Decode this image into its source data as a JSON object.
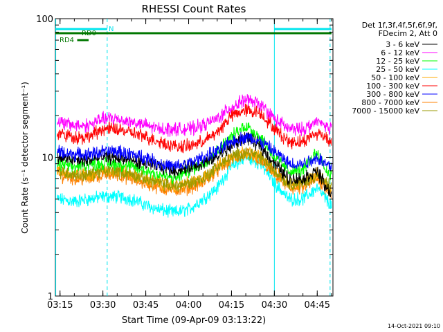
{
  "chart_data": {
    "type": "line",
    "title": "RHESSI Count Rates",
    "xlabel": "Start Time (09-Apr-09 03:13:22)",
    "ylabel": "Count Rate (s⁻¹ detector segment⁻¹)",
    "y_scale": "log",
    "ylim": [
      1,
      100
    ],
    "xlim": [
      "03:13:22",
      "04:50:30"
    ],
    "x_ticks": [
      "03:15",
      "03:30",
      "03:45",
      "04:00",
      "04:15",
      "04:30",
      "04:45"
    ],
    "y_ticks": [
      "1",
      "10",
      "100"
    ],
    "legend_header": [
      "Det 1f,3f,4f,5f,6f,9f,",
      "FDecim 2, Att 0"
    ],
    "legend_position": "right",
    "annotations": {
      "flags": [
        {
          "label": "N",
          "color": "#00e5ee",
          "segments": [
            [
              "03:13:22",
              "03:31:30"
            ],
            [
              "04:30:00",
              "04:50:00"
            ]
          ]
        },
        {
          "label": "RD0",
          "color": "#007700",
          "segments": [
            [
              "03:13:22",
              "04:50:00"
            ]
          ]
        },
        {
          "label": "RD4",
          "color": "#007700",
          "segments": [
            [
              "03:21:00",
              "03:25:00"
            ]
          ]
        }
      ],
      "night_boundaries": [
        {
          "time": "03:13:30",
          "style": "solid"
        },
        {
          "time": "03:31:30",
          "style": "dashed"
        },
        {
          "time": "04:30:00",
          "style": "solid"
        },
        {
          "time": "04:49:30",
          "style": "dashed"
        }
      ]
    },
    "x": [
      "03:14",
      "03:20",
      "03:25",
      "03:30",
      "03:35",
      "03:40",
      "03:45",
      "03:50",
      "03:55",
      "04:00",
      "04:05",
      "04:10",
      "04:15",
      "04:20",
      "04:25",
      "04:30",
      "04:35",
      "04:40",
      "04:45",
      "04:48",
      "04:50"
    ],
    "series": [
      {
        "name": "3 - 6 keV",
        "color": "#000000",
        "values": [
          10,
          9.5,
          9.5,
          10,
          10,
          9.5,
          9,
          8.5,
          8,
          8.5,
          9,
          10,
          12,
          14,
          12,
          9,
          7,
          7,
          8,
          6,
          5.5
        ]
      },
      {
        "name": "6 - 12 keV",
        "color": "#ff00ff",
        "values": [
          18,
          17,
          17,
          19,
          19,
          18,
          17,
          16,
          16,
          16,
          17,
          19,
          23,
          26,
          24,
          19,
          16,
          16,
          18,
          17,
          16
        ]
      },
      {
        "name": "12 - 25 keV",
        "color": "#00ff00",
        "values": [
          9,
          8.5,
          9,
          9,
          9,
          8.5,
          8,
          7.5,
          7,
          8,
          9,
          11,
          14,
          17,
          14,
          10,
          8,
          8,
          11,
          8,
          7.5
        ]
      },
      {
        "name": "25 - 50 keV",
        "color": "#00ffff",
        "values": [
          5,
          4.8,
          5,
          5.2,
          5.2,
          5,
          4.5,
          4.2,
          4,
          4.2,
          5,
          6,
          8.5,
          10,
          9,
          6.5,
          5,
          5,
          6,
          5,
          4.5
        ]
      },
      {
        "name": "50 - 100 keV",
        "color": "#ffaa00",
        "values": [
          8,
          7.5,
          7.5,
          8,
          8,
          7.5,
          7,
          6.5,
          6.2,
          6.5,
          7,
          8.5,
          10,
          11,
          10,
          8,
          6.5,
          6.5,
          7.5,
          6.5,
          6
        ]
      },
      {
        "name": "100 - 300 keV",
        "color": "#ff0000",
        "values": [
          15,
          14,
          14,
          16,
          16,
          15,
          14,
          13,
          12,
          12,
          13,
          15,
          20,
          22,
          21,
          16,
          13,
          13,
          15,
          14,
          13
        ]
      },
      {
        "name": "300 - 800 keV",
        "color": "#0000ff",
        "values": [
          11,
          10.5,
          10.5,
          11,
          11,
          10.5,
          10,
          9,
          8.5,
          9,
          10,
          11,
          13,
          14,
          13,
          11,
          9,
          9,
          10,
          9,
          8.5
        ]
      },
      {
        "name": "800 - 7000 keV",
        "color": "#ff8000",
        "values": [
          7.5,
          7,
          7,
          7.5,
          7.5,
          7,
          6.5,
          6,
          5.8,
          6,
          6.5,
          8,
          9.5,
          10.5,
          9.5,
          7.5,
          6,
          6,
          7,
          6,
          5.5
        ]
      },
      {
        "name": "7000 - 15000 keV",
        "color": "#999900",
        "values": [
          8,
          7.5,
          7.5,
          8,
          8,
          7.5,
          7,
          6.5,
          6.2,
          6.5,
          7,
          8.5,
          10,
          11,
          10,
          8,
          6.5,
          6.5,
          7.5,
          6.5,
          6
        ]
      }
    ]
  },
  "footer": {
    "timestamp": "14-Oct-2021 09:10"
  }
}
